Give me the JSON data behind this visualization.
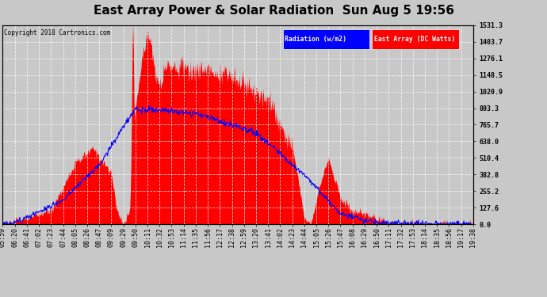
{
  "title": "East Array Power & Solar Radiation  Sun Aug 5 19:56",
  "copyright": "Copyright 2018 Cartronics.com",
  "legend_items": [
    {
      "label": "Radiation (w/m2)",
      "color": "#0000ff"
    },
    {
      "label": "East Array (DC Watts)",
      "color": "#ff0000"
    }
  ],
  "y_ticks": [
    0.0,
    127.6,
    255.2,
    382.8,
    510.4,
    638.0,
    765.7,
    893.3,
    1020.9,
    1148.5,
    1276.1,
    1403.7,
    1531.3
  ],
  "y_max": 1531.3,
  "background_color": "#c8c8c8",
  "plot_bg_color": "#c8c8c8",
  "fig_bg_color": "#c8c8c8",
  "grid_color": "#aaaaaa",
  "x_labels": [
    "05:59",
    "06:20",
    "06:41",
    "07:02",
    "07:23",
    "07:44",
    "08:05",
    "08:26",
    "08:47",
    "09:09",
    "09:29",
    "09:50",
    "10:11",
    "10:32",
    "10:53",
    "11:14",
    "11:35",
    "11:56",
    "12:17",
    "12:38",
    "12:59",
    "13:20",
    "13:41",
    "14:02",
    "14:23",
    "14:44",
    "15:05",
    "15:26",
    "15:47",
    "16:08",
    "16:29",
    "16:50",
    "17:11",
    "17:32",
    "17:53",
    "18:14",
    "18:35",
    "18:56",
    "19:17",
    "19:38"
  ],
  "title_fontsize": 11,
  "tick_fontsize": 6,
  "label_fontsize": 7
}
